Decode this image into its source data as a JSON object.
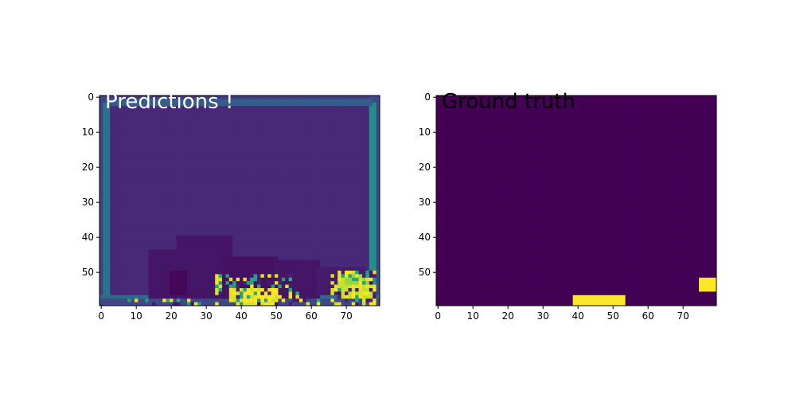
{
  "chart_data": [
    {
      "type": "heatmap",
      "title": "Predictions !",
      "title_color": "#ffffff",
      "colormap": "viridis",
      "grid": false,
      "grid_shape": [
        60,
        80
      ],
      "x_ticks": [
        0,
        10,
        20,
        30,
        40,
        50,
        60,
        70
      ],
      "y_ticks": [
        0,
        10,
        20,
        30,
        40,
        50
      ],
      "xlim": [
        -0.5,
        79.5
      ],
      "ylim": [
        59.5,
        -0.5
      ],
      "background_value": 0.12,
      "regions": [
        {
          "x": [
            0,
            79
          ],
          "y": [
            0,
            2
          ],
          "value": 0.18
        },
        {
          "x": [
            0,
            2
          ],
          "y": [
            0,
            59
          ],
          "value": 0.2
        },
        {
          "x": [
            77,
            79
          ],
          "y": [
            0,
            59
          ],
          "value": 0.22
        },
        {
          "x": [
            1,
            2
          ],
          "y": [
            2,
            57
          ],
          "value": 0.38
        },
        {
          "x": [
            77,
            78
          ],
          "y": [
            2,
            57
          ],
          "value": 0.48
        },
        {
          "x": [
            2,
            77
          ],
          "y": [
            1,
            2
          ],
          "value": 0.3
        },
        {
          "x": [
            0,
            79
          ],
          "y": [
            57,
            58
          ],
          "value": 0.35
        },
        {
          "x": [
            0,
            79
          ],
          "y": [
            58,
            59
          ],
          "value": 0.22
        },
        {
          "x": [
            14,
            35
          ],
          "y": [
            44,
            57
          ],
          "value": 0.06
        },
        {
          "x": [
            22,
            37
          ],
          "y": [
            40,
            46
          ],
          "value": 0.06
        },
        {
          "x": [
            35,
            50
          ],
          "y": [
            46,
            57
          ],
          "value": 0.05
        },
        {
          "x": [
            50,
            62
          ],
          "y": [
            47,
            57
          ],
          "value": 0.06
        },
        {
          "x": [
            62,
            75
          ],
          "y": [
            49,
            56
          ],
          "value": 0.08
        },
        {
          "x": [
            20,
            24
          ],
          "y": [
            50,
            56
          ],
          "value": 0.02
        },
        {
          "x": [
            39,
            50
          ],
          "y": [
            55,
            59
          ],
          "value": 1.0
        },
        {
          "x": [
            37,
            40
          ],
          "y": [
            55,
            58
          ],
          "value": 0.95
        },
        {
          "x": [
            68,
            77
          ],
          "y": [
            52,
            57
          ],
          "value": 0.92
        },
        {
          "x": [
            70,
            76
          ],
          "y": [
            51,
            53
          ],
          "value": 0.85
        }
      ],
      "noise_regions": [
        {
          "x": [
            33,
            54
          ],
          "y": [
            51,
            59
          ],
          "density": 0.55
        },
        {
          "x": [
            66,
            78
          ],
          "y": [
            50,
            59
          ],
          "density": 0.55
        },
        {
          "x": [
            55,
            62
          ],
          "y": [
            56,
            59
          ],
          "density": 0.3
        },
        {
          "x": [
            8,
            30
          ],
          "y": [
            58,
            59
          ],
          "density": 0.25
        }
      ]
    },
    {
      "type": "heatmap",
      "title": "Ground truth",
      "title_color": "#000000",
      "colormap": "viridis",
      "grid": false,
      "grid_shape": [
        60,
        80
      ],
      "x_ticks": [
        0,
        10,
        20,
        30,
        40,
        50,
        60,
        70
      ],
      "y_ticks": [
        0,
        10,
        20,
        30,
        40,
        50
      ],
      "xlim": [
        -0.5,
        79.5
      ],
      "ylim": [
        59.5,
        -0.5
      ],
      "background_value": 0,
      "regions": [
        {
          "x": [
            39,
            53
          ],
          "y": [
            57,
            59
          ],
          "value": 1
        },
        {
          "x": [
            75,
            79
          ],
          "y": [
            52,
            55
          ],
          "value": 1
        }
      ],
      "noise_regions": []
    }
  ]
}
